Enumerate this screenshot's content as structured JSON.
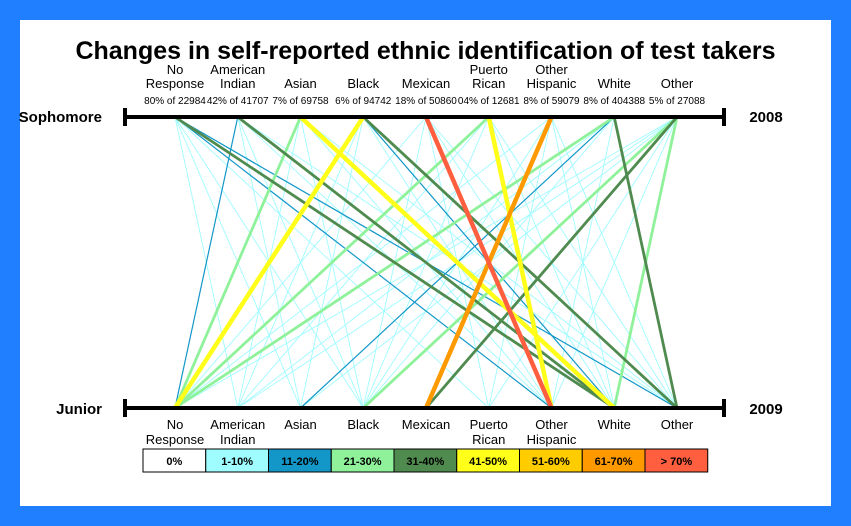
{
  "chart_data": {
    "type": "parallel-sets",
    "title": "Changes in self-reported ethnic identification of test takers",
    "top_axis": {
      "name": "Sophomore",
      "year": "2008"
    },
    "bottom_axis": {
      "name": "Junior",
      "year": "2009"
    },
    "categories": [
      [
        "No",
        "Response"
      ],
      [
        "American",
        "Indian"
      ],
      [
        "Asian"
      ],
      [
        "Black"
      ],
      [
        "Mexican"
      ],
      [
        "Puerto",
        "Rican"
      ],
      [
        "Other",
        "Hispanic"
      ],
      [
        "White"
      ],
      [
        "Other"
      ]
    ],
    "top_percent_labels": [
      "80% of 22984",
      "42% of 41707",
      "7% of 69758",
      "6% of 94742",
      "18% of 50860",
      "04% of 12681",
      "8% of 59079",
      "8% of 404388",
      "5% of 27088"
    ],
    "legend": [
      {
        "label": "0%",
        "color": "#ffffff"
      },
      {
        "label": "1-10%",
        "color": "#9ffcff"
      },
      {
        "label": "11-20%",
        "color": "#1297c8"
      },
      {
        "label": "21-30%",
        "color": "#8ff29b"
      },
      {
        "label": "31-40%",
        "color": "#4f8a4f"
      },
      {
        "label": "41-50%",
        "color": "#ffff1a"
      },
      {
        "label": "51-60%",
        "color": "#ffcc00"
      },
      {
        "label": "61-70%",
        "color": "#ff9900"
      },
      {
        "label": "> 70%",
        "color": "#ff5f3f"
      }
    ],
    "flows": [
      {
        "from": 0,
        "to": 1,
        "band": 1
      },
      {
        "from": 0,
        "to": 2,
        "band": 1
      },
      {
        "from": 0,
        "to": 3,
        "band": 1
      },
      {
        "from": 0,
        "to": 5,
        "band": 1
      },
      {
        "from": 0,
        "to": 6,
        "band": 2
      },
      {
        "from": 0,
        "to": 7,
        "band": 4
      },
      {
        "from": 0,
        "to": 8,
        "band": 2
      },
      {
        "from": 1,
        "to": 0,
        "band": 2
      },
      {
        "from": 1,
        "to": 2,
        "band": 1
      },
      {
        "from": 1,
        "to": 3,
        "band": 1
      },
      {
        "from": 1,
        "to": 6,
        "band": 1
      },
      {
        "from": 1,
        "to": 7,
        "band": 4
      },
      {
        "from": 1,
        "to": 8,
        "band": 1
      },
      {
        "from": 2,
        "to": 0,
        "band": 3
      },
      {
        "from": 2,
        "to": 1,
        "band": 1
      },
      {
        "from": 2,
        "to": 3,
        "band": 1
      },
      {
        "from": 2,
        "to": 6,
        "band": 1
      },
      {
        "from": 2,
        "to": 7,
        "band": 5
      },
      {
        "from": 2,
        "to": 8,
        "band": 1
      },
      {
        "from": 3,
        "to": 0,
        "band": 5
      },
      {
        "from": 3,
        "to": 1,
        "band": 1
      },
      {
        "from": 3,
        "to": 2,
        "band": 1
      },
      {
        "from": 3,
        "to": 6,
        "band": 1
      },
      {
        "from": 3,
        "to": 7,
        "band": 2
      },
      {
        "from": 3,
        "to": 8,
        "band": 4
      },
      {
        "from": 4,
        "to": 0,
        "band": 1
      },
      {
        "from": 4,
        "to": 3,
        "band": 1
      },
      {
        "from": 4,
        "to": 5,
        "band": 1
      },
      {
        "from": 4,
        "to": 6,
        "band": 8
      },
      {
        "from": 4,
        "to": 7,
        "band": 1
      },
      {
        "from": 4,
        "to": 8,
        "band": 1
      },
      {
        "from": 5,
        "to": 0,
        "band": 3
      },
      {
        "from": 5,
        "to": 1,
        "band": 1
      },
      {
        "from": 5,
        "to": 3,
        "band": 1
      },
      {
        "from": 5,
        "to": 6,
        "band": 5
      },
      {
        "from": 5,
        "to": 7,
        "band": 1
      },
      {
        "from": 5,
        "to": 8,
        "band": 1
      },
      {
        "from": 6,
        "to": 0,
        "band": 1
      },
      {
        "from": 6,
        "to": 3,
        "band": 1
      },
      {
        "from": 6,
        "to": 4,
        "band": 7
      },
      {
        "from": 6,
        "to": 5,
        "band": 1
      },
      {
        "from": 6,
        "to": 7,
        "band": 1
      },
      {
        "from": 6,
        "to": 8,
        "band": 1
      },
      {
        "from": 7,
        "to": 0,
        "band": 3
      },
      {
        "from": 7,
        "to": 1,
        "band": 1
      },
      {
        "from": 7,
        "to": 2,
        "band": 2
      },
      {
        "from": 7,
        "to": 3,
        "band": 1
      },
      {
        "from": 7,
        "to": 6,
        "band": 1
      },
      {
        "from": 7,
        "to": 8,
        "band": 4
      },
      {
        "from": 8,
        "to": 0,
        "band": 1
      },
      {
        "from": 8,
        "to": 1,
        "band": 1
      },
      {
        "from": 8,
        "to": 2,
        "band": 1
      },
      {
        "from": 8,
        "to": 3,
        "band": 3
      },
      {
        "from": 8,
        "to": 4,
        "band": 4
      },
      {
        "from": 8,
        "to": 5,
        "band": 1
      },
      {
        "from": 8,
        "to": 6,
        "band": 1
      },
      {
        "from": 8,
        "to": 7,
        "band": 3
      }
    ]
  }
}
